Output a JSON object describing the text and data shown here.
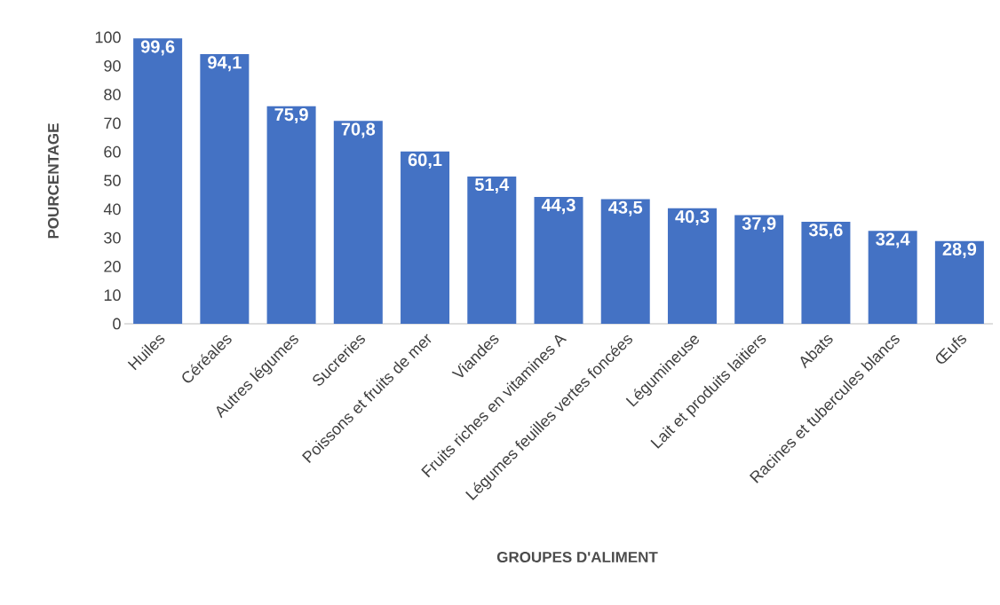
{
  "chart_data": {
    "type": "bar",
    "xlabel": "GROUPES D'ALIMENT",
    "ylabel": "POURCENTAGE",
    "categories": [
      "Huiles",
      "Céréales",
      "Autres légumes",
      "Sucreries",
      "Poissons et fruits de mer",
      "Viandes",
      "Fruits riches en vitamines A",
      "Légumes feuilles vertes foncées",
      "Légumineuse",
      "Lait et produits laitiers",
      "Abats",
      "Racines et tubercules blancs",
      "Œufs"
    ],
    "values": [
      99.6,
      94.1,
      75.9,
      70.8,
      60.1,
      51.4,
      44.3,
      43.5,
      40.3,
      37.9,
      35.6,
      32.4,
      28.9
    ],
    "value_labels": [
      "99,6",
      "94,1",
      "75,9",
      "70,8",
      "60,1",
      "51,4",
      "44,3",
      "43,5",
      "40,3",
      "37,9",
      "35,6",
      "32,4",
      "28,9"
    ],
    "color": "#4472c4",
    "ylim": [
      0,
      100
    ],
    "yticks": [
      0,
      10,
      20,
      30,
      40,
      50,
      60,
      70,
      80,
      90,
      100
    ]
  }
}
